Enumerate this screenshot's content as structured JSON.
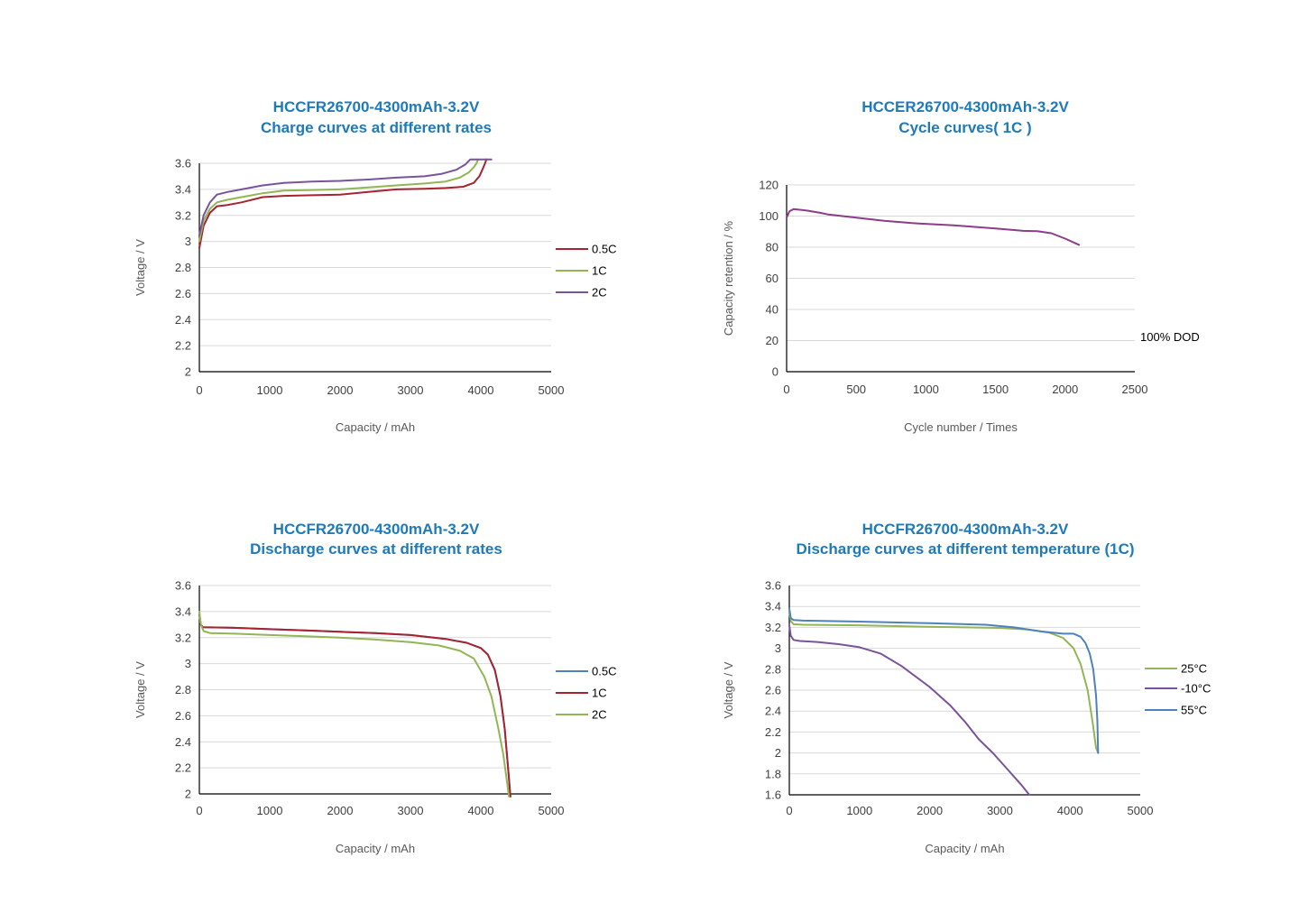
{
  "chart_data": [
    {
      "type": "line",
      "title": [
        "HCCFR26700-4300mAh-3.2V",
        "Charge curves at different rates"
      ],
      "xlabel": "Capacity / mAh",
      "ylabel": "Voltage / V",
      "xlim": [
        0,
        5000
      ],
      "ylim": [
        2,
        3.6
      ],
      "xticks": [
        0,
        1000,
        2000,
        3000,
        4000,
        5000
      ],
      "yticks": [
        2,
        2.2,
        2.4,
        2.6,
        2.8,
        3,
        3.2,
        3.4,
        3.6
      ],
      "ytick_labels": [
        "2",
        "2.2",
        "2.4",
        "2.6",
        "2.8",
        "3",
        "3.2",
        "3.4",
        "3.6"
      ],
      "series": [
        {
          "name": "0.5C",
          "color": "#a6232f",
          "x": [
            0,
            60,
            150,
            250,
            400,
            600,
            900,
            1200,
            1600,
            2000,
            2400,
            2800,
            3200,
            3500,
            3750,
            3900,
            3980,
            4030,
            4060,
            4080
          ],
          "y": [
            2.95,
            3.12,
            3.22,
            3.27,
            3.28,
            3.3,
            3.34,
            3.35,
            3.355,
            3.36,
            3.38,
            3.4,
            3.405,
            3.41,
            3.42,
            3.45,
            3.5,
            3.56,
            3.6,
            3.63
          ]
        },
        {
          "name": "1C",
          "color": "#92b556",
          "x": [
            0,
            60,
            150,
            250,
            400,
            600,
            900,
            1200,
            1600,
            2000,
            2400,
            2800,
            3200,
            3500,
            3700,
            3830,
            3900,
            3940,
            3960
          ],
          "y": [
            3.0,
            3.16,
            3.25,
            3.3,
            3.32,
            3.34,
            3.37,
            3.39,
            3.395,
            3.4,
            3.415,
            3.43,
            3.445,
            3.46,
            3.49,
            3.53,
            3.57,
            3.6,
            3.63
          ]
        },
        {
          "name": "2C",
          "color": "#7a539b",
          "x": [
            0,
            60,
            150,
            250,
            400,
            600,
            900,
            1200,
            1600,
            2000,
            2400,
            2800,
            3200,
            3450,
            3650,
            3780,
            3850,
            4000,
            4150
          ],
          "y": [
            3.05,
            3.2,
            3.3,
            3.36,
            3.38,
            3.4,
            3.43,
            3.45,
            3.46,
            3.465,
            3.475,
            3.49,
            3.5,
            3.52,
            3.55,
            3.59,
            3.63,
            3.63,
            3.63
          ]
        }
      ],
      "legend": [
        "0.5C",
        "1C",
        "2C"
      ]
    },
    {
      "type": "line",
      "title": [
        "HCCER26700-4300mAh-3.2V",
        "Cycle curves( 1C )"
      ],
      "xlabel": "Cycle number / Times",
      "ylabel": "Capacity retention / %",
      "xlim": [
        0,
        2500
      ],
      "ylim": [
        0,
        120
      ],
      "xticks": [
        0,
        500,
        1000,
        1500,
        2000,
        2500
      ],
      "yticks": [
        0,
        20,
        40,
        60,
        80,
        100,
        120
      ],
      "ytick_labels": [
        "0",
        "20",
        "40",
        "60",
        "80",
        "100",
        "120"
      ],
      "annotation": "100% DOD",
      "series": [
        {
          "name": "Capacity retention",
          "color": "#8b3d8a",
          "x": [
            0,
            20,
            50,
            150,
            250,
            300,
            500,
            700,
            900,
            1200,
            1500,
            1700,
            1800,
            1900,
            2000,
            2100
          ],
          "y": [
            99,
            103,
            104.5,
            103.5,
            102,
            101,
            99,
            97,
            95.5,
            94,
            92,
            90.5,
            90.3,
            89,
            85.5,
            81.5
          ]
        }
      ]
    },
    {
      "type": "line",
      "title": [
        "HCCFR26700-4300mAh-3.2V",
        "Discharge curves at different rates"
      ],
      "xlabel": "Capacity / mAh",
      "ylabel": "Voltage / V",
      "xlim": [
        0,
        5000
      ],
      "ylim": [
        2,
        3.6
      ],
      "xticks": [
        0,
        1000,
        2000,
        3000,
        4000,
        5000
      ],
      "yticks": [
        2,
        2.2,
        2.4,
        2.6,
        2.8,
        3,
        3.2,
        3.4,
        3.6
      ],
      "ytick_labels": [
        "2",
        "2.2",
        "2.4",
        "2.6",
        "2.8",
        "3",
        "3.2",
        "3.4",
        "3.6"
      ],
      "series": [
        {
          "name": "0.5C",
          "color": "#4f81bd",
          "x": [
            0,
            20,
            50,
            500,
            1000,
            1500,
            2000,
            2500,
            3000,
            3500,
            3800,
            4000,
            4100,
            4200,
            4280,
            4340,
            4380,
            4410,
            4420
          ],
          "y": [
            3.38,
            3.3,
            3.28,
            3.275,
            3.265,
            3.255,
            3.245,
            3.235,
            3.22,
            3.19,
            3.16,
            3.12,
            3.07,
            2.95,
            2.75,
            2.5,
            2.25,
            2.05,
            1.98
          ]
        },
        {
          "name": "1C",
          "color": "#a6232f",
          "x": [
            0,
            20,
            50,
            500,
            1000,
            1500,
            2000,
            2500,
            3000,
            3500,
            3800,
            4000,
            4100,
            4200,
            4280,
            4340,
            4380,
            4410,
            4420
          ],
          "y": [
            3.38,
            3.3,
            3.28,
            3.275,
            3.265,
            3.255,
            3.245,
            3.235,
            3.22,
            3.19,
            3.16,
            3.12,
            3.07,
            2.95,
            2.75,
            2.5,
            2.25,
            2.05,
            1.98
          ]
        },
        {
          "name": "2C",
          "color": "#92b556",
          "x": [
            0,
            20,
            60,
            150,
            500,
            1000,
            1500,
            2000,
            2500,
            3000,
            3400,
            3700,
            3900,
            4050,
            4150,
            4250,
            4320,
            4370,
            4400
          ],
          "y": [
            3.4,
            3.3,
            3.25,
            3.235,
            3.23,
            3.22,
            3.21,
            3.2,
            3.185,
            3.165,
            3.14,
            3.1,
            3.04,
            2.9,
            2.75,
            2.5,
            2.3,
            2.1,
            1.98
          ]
        }
      ],
      "legend": [
        "0.5C",
        "1C",
        "2C"
      ]
    },
    {
      "type": "line",
      "title": [
        "HCCFR26700-4300mAh-3.2V",
        "Discharge curves at different temperature (1C)"
      ],
      "xlabel": "Capacity / mAh",
      "ylabel": "Voltage / V",
      "xlim": [
        0,
        5000
      ],
      "ylim": [
        1.6,
        3.6
      ],
      "xticks": [
        0,
        1000,
        2000,
        3000,
        4000,
        5000
      ],
      "yticks": [
        1.6,
        1.8,
        2,
        2.2,
        2.4,
        2.6,
        2.8,
        3,
        3.2,
        3.4,
        3.6
      ],
      "ytick_labels": [
        "1.6",
        "1.8",
        "2",
        "2.2",
        "2.4",
        "2.6",
        "2.8",
        "3",
        "3.2",
        "3.4",
        "3.6"
      ],
      "series": [
        {
          "name": "25°C",
          "color": "#92b556",
          "x": [
            0,
            20,
            60,
            200,
            1000,
            2000,
            3000,
            3400,
            3700,
            3900,
            4050,
            4150,
            4250,
            4320,
            4370,
            4400
          ],
          "y": [
            3.35,
            3.26,
            3.23,
            3.225,
            3.22,
            3.205,
            3.195,
            3.18,
            3.15,
            3.1,
            3.0,
            2.85,
            2.6,
            2.3,
            2.05,
            2.0
          ]
        },
        {
          "name": "-10°C",
          "color": "#7a539b",
          "x": [
            0,
            20,
            60,
            150,
            400,
            700,
            1000,
            1300,
            1600,
            2000,
            2300,
            2500,
            2700,
            2900,
            3100,
            3300,
            3420
          ],
          "y": [
            3.22,
            3.12,
            3.08,
            3.07,
            3.06,
            3.04,
            3.01,
            2.95,
            2.83,
            2.63,
            2.45,
            2.3,
            2.13,
            2.0,
            1.85,
            1.7,
            1.6
          ]
        },
        {
          "name": "55°C",
          "color": "#4f81bd",
          "x": [
            0,
            20,
            60,
            200,
            1000,
            2000,
            2800,
            3200,
            3600,
            3900,
            4050,
            4150,
            4220,
            4280,
            4330,
            4370,
            4390,
            4400
          ],
          "y": [
            3.38,
            3.29,
            3.27,
            3.265,
            3.255,
            3.24,
            3.225,
            3.2,
            3.16,
            3.14,
            3.14,
            3.11,
            3.05,
            2.95,
            2.8,
            2.55,
            2.3,
            2.0
          ]
        }
      ],
      "legend": [
        "25°C",
        "-10°C",
        "55°C"
      ]
    }
  ]
}
